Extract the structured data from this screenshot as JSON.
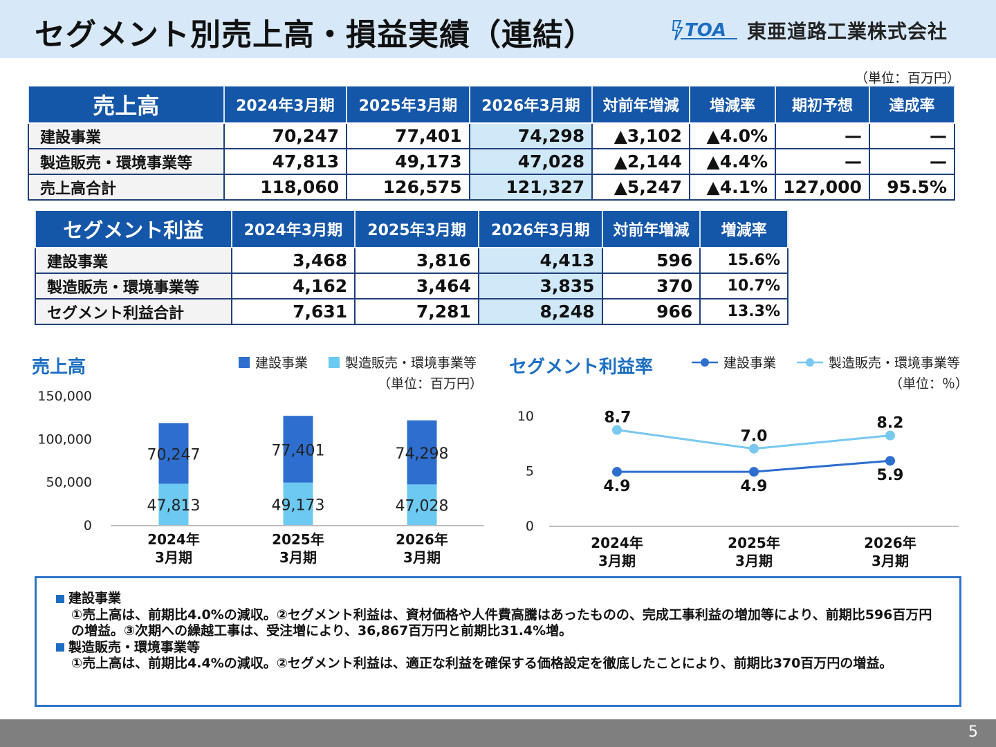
{
  "title": "セグメント別売上高・損益実績（連結）",
  "logo": {
    "mark": "TOA",
    "company": "東亜道路工業株式会社"
  },
  "unit_top": "（単位：百万円）",
  "sales_table": {
    "lead": "売上高",
    "headers": [
      "2024年3月期",
      "2025年3月期",
      "2026年3月期",
      "対前年増減",
      "増減率",
      "期初予想",
      "達成率"
    ],
    "rows": [
      {
        "label": "建設事業",
        "cells": [
          "70,247",
          "77,401",
          "74,298",
          "▲3,102",
          "▲4.0%",
          "—",
          "—"
        ]
      },
      {
        "label": "製造販売・環境事業等",
        "cells": [
          "47,813",
          "49,173",
          "47,028",
          "▲2,144",
          "▲4.4%",
          "—",
          "—"
        ]
      },
      {
        "label": "売上高合計",
        "cells": [
          "118,060",
          "126,575",
          "121,327",
          "▲5,247",
          "▲4.1%",
          "127,000",
          "95.5%"
        ]
      }
    ]
  },
  "profit_table": {
    "lead": "セグメント利益",
    "headers": [
      "2024年3月期",
      "2025年3月期",
      "2026年3月期",
      "対前年増減",
      "増減率"
    ],
    "rows": [
      {
        "label": "建設事業",
        "cells": [
          "3,468",
          "3,816",
          "4,413",
          "596",
          "15.6%"
        ]
      },
      {
        "label": "製造販売・環境事業等",
        "cells": [
          "4,162",
          "3,464",
          "3,835",
          "370",
          "10.7%"
        ]
      },
      {
        "label": "セグメント利益合計",
        "cells": [
          "7,631",
          "7,281",
          "8,248",
          "966",
          "13.3%"
        ]
      }
    ]
  },
  "sales_chart": {
    "title": "売上高",
    "unit": "（単位：百万円）",
    "legend": [
      "建設事業",
      "製造販売・環境事業等"
    ],
    "colors": {
      "construction": "#2d6ecf",
      "manufacturing": "#6cc9f2"
    }
  },
  "margin_chart": {
    "title": "セグメント利益率",
    "unit": "（単位：％）",
    "legend": [
      "建設事業",
      "製造販売・環境事業等"
    ],
    "colors": {
      "construction": "#2d6ecf",
      "manufacturing": "#78c8f0"
    }
  },
  "chart_data": [
    {
      "type": "bar",
      "stacked": true,
      "title": "売上高",
      "categories": [
        "2024年\n3月期",
        "2025年\n3月期",
        "2026年\n3月期"
      ],
      "series": [
        {
          "name": "製造販売・環境事業等",
          "values": [
            47813,
            49173,
            47028
          ]
        },
        {
          "name": "建設事業",
          "values": [
            70247,
            77401,
            74298
          ]
        }
      ],
      "ylim": [
        0,
        150000
      ],
      "yticks": [
        "0",
        "50,000",
        "100,000",
        "150,000"
      ],
      "grid": false,
      "legend": "top-right"
    },
    {
      "type": "line",
      "title": "セグメント利益率",
      "categories": [
        "2024年\n3月期",
        "2025年\n3月期",
        "2026年\n3月期"
      ],
      "series": [
        {
          "name": "建設事業",
          "values": [
            4.9,
            4.9,
            5.9
          ]
        },
        {
          "name": "製造販売・環境事業等",
          "values": [
            8.7,
            7.0,
            8.2
          ]
        }
      ],
      "ylim": [
        0,
        10
      ],
      "yticks": [
        "0",
        "5",
        "10"
      ],
      "grid": false,
      "legend": "top-right"
    }
  ],
  "notes": [
    {
      "heading": "建設事業",
      "text": "①売上高は、前期比4.0%の減収。②セグメント利益は、資材価格や人件費高騰はあったものの、完成工事利益の増加等により、前期比596百万円の増益。③次期への繰越工事は、受注増により、36,867百万円と前期比31.4%増。"
    },
    {
      "heading": "製造販売・環境事業等",
      "text": "①売上高は、前期比4.4%の減収。②セグメント利益は、適正な利益を確保する価格設定を徹底したことにより、前期比370百万円の増益。"
    }
  ],
  "page_number": "5"
}
